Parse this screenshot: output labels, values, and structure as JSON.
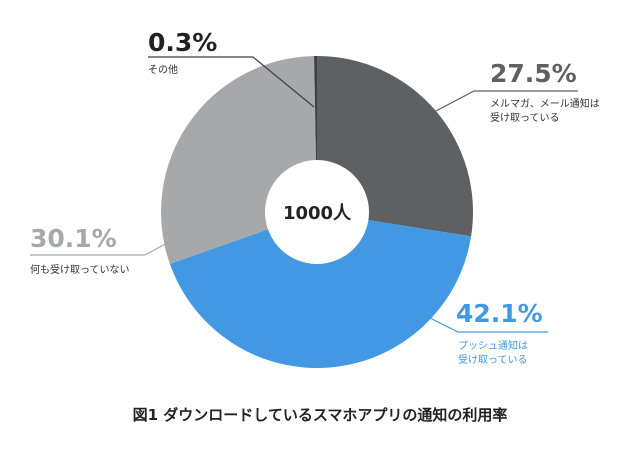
{
  "chart_data": {
    "type": "pie",
    "donut": true,
    "center_label": "1000人",
    "slices": [
      {
        "label_lines": [
          "メルマガ、メール通知は",
          "受け取っている"
        ],
        "percent_text": "27.5%",
        "value": 27.5,
        "color": "#5f6062"
      },
      {
        "label_lines": [
          "プッシュ通知は",
          "受け取っている"
        ],
        "percent_text": "42.1%",
        "value": 42.1,
        "color": "#4298e3"
      },
      {
        "label_lines": [
          "何も受け取っていない"
        ],
        "percent_text": "30.1%",
        "value": 30.1,
        "color": "#a7a8aa"
      },
      {
        "label_lines": [
          "その他"
        ],
        "percent_text": "0.3%",
        "value": 0.3,
        "color": "#3f4042"
      }
    ],
    "title": "図1 ダウンロードしているスマホアプリの通知の利用率"
  }
}
